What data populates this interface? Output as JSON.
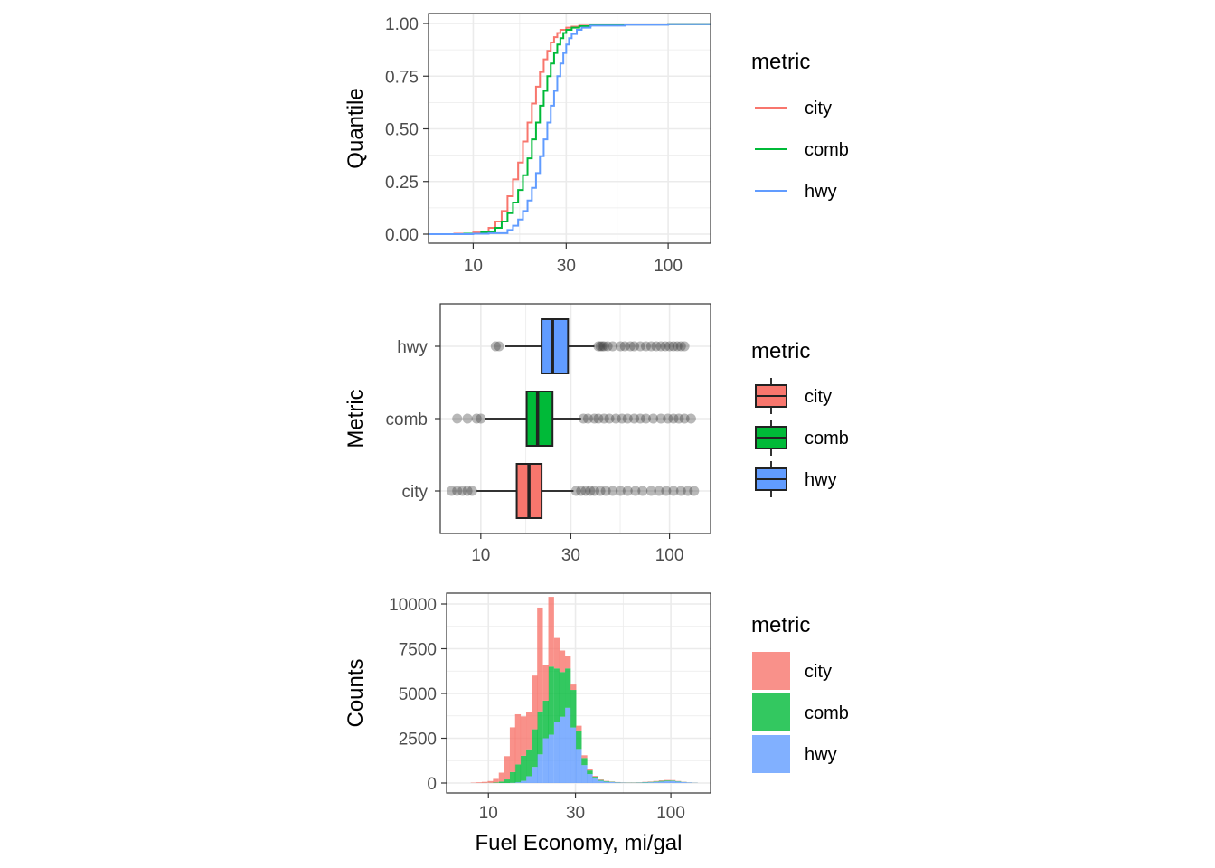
{
  "chart_data": [
    {
      "type": "line",
      "subtype": "ecdf-step",
      "ylabel": "Quantile",
      "xscale": "log10",
      "xlim": [
        5.9,
        165
      ],
      "ylim": [
        0,
        1
      ],
      "xticks": [
        10,
        30,
        100
      ],
      "yticks": [
        0.0,
        0.25,
        0.5,
        0.75,
        1.0
      ],
      "ytick_labels": [
        "0.00",
        "0.25",
        "0.50",
        "0.75",
        "1.00"
      ],
      "grid": true,
      "legend": {
        "title": "metric",
        "position": "right",
        "entries": [
          "city",
          "comb",
          "hwy"
        ]
      },
      "series": [
        {
          "name": "city",
          "color": "#F8766D",
          "x": [
            5.9,
            8,
            10,
            12,
            13,
            14,
            15,
            16,
            17,
            18,
            19,
            20,
            21,
            22,
            23,
            24,
            25,
            26,
            27,
            28,
            30,
            32,
            35,
            40,
            60,
            100,
            165
          ],
          "y": [
            0,
            0.002,
            0.008,
            0.03,
            0.06,
            0.11,
            0.18,
            0.26,
            0.34,
            0.44,
            0.53,
            0.62,
            0.7,
            0.77,
            0.83,
            0.87,
            0.91,
            0.935,
            0.955,
            0.97,
            0.98,
            0.985,
            0.99,
            0.993,
            0.995,
            0.997,
            1.0
          ]
        },
        {
          "name": "comb",
          "color": "#00BA38",
          "x": [
            5.9,
            9,
            11,
            13,
            14,
            15,
            16,
            17,
            18,
            19,
            20,
            21,
            22,
            23,
            24,
            25,
            26,
            27,
            28,
            29,
            30,
            32,
            35,
            40,
            60,
            100,
            165
          ],
          "y": [
            0,
            0.002,
            0.01,
            0.03,
            0.06,
            0.1,
            0.15,
            0.21,
            0.28,
            0.36,
            0.45,
            0.53,
            0.61,
            0.68,
            0.75,
            0.81,
            0.86,
            0.9,
            0.93,
            0.955,
            0.97,
            0.98,
            0.987,
            0.992,
            0.995,
            0.997,
            1.0
          ]
        },
        {
          "name": "hwy",
          "color": "#619CFF",
          "x": [
            5.9,
            10,
            12,
            15,
            16,
            17,
            18,
            19,
            20,
            21,
            22,
            23,
            24,
            25,
            26,
            27,
            28,
            29,
            30,
            31,
            32,
            34,
            36,
            40,
            60,
            100,
            165
          ],
          "y": [
            0,
            0.002,
            0.005,
            0.02,
            0.04,
            0.07,
            0.11,
            0.16,
            0.22,
            0.29,
            0.37,
            0.45,
            0.53,
            0.61,
            0.68,
            0.75,
            0.81,
            0.86,
            0.9,
            0.93,
            0.95,
            0.97,
            0.98,
            0.99,
            0.994,
            0.997,
            1.0
          ]
        }
      ]
    },
    {
      "type": "box",
      "ylabel": "Metric",
      "xscale": "log10",
      "xlim": [
        6.1,
        165
      ],
      "xticks": [
        10,
        30,
        100
      ],
      "categories": [
        "hwy",
        "comb",
        "city"
      ],
      "grid": true,
      "legend": {
        "title": "metric",
        "position": "right",
        "entries": [
          "city",
          "comb",
          "hwy"
        ]
      },
      "boxes": [
        {
          "name": "hwy",
          "color": "#619CFF",
          "whisker_low": 13.5,
          "q1": 21,
          "median": 24,
          "q3": 29,
          "whisker_high": 40,
          "outliers": [
            12,
            12.5,
            42,
            43,
            44,
            45,
            47,
            50,
            55,
            58,
            62,
            65,
            70,
            75,
            80,
            85,
            90,
            95,
            100,
            105,
            110,
            115,
            120
          ]
        },
        {
          "name": "comb",
          "color": "#00BA38",
          "whisker_low": 10.5,
          "q1": 17.5,
          "median": 20,
          "q3": 24,
          "whisker_high": 34,
          "outliers": [
            7.5,
            8.5,
            9.5,
            10,
            35,
            37,
            40,
            42,
            45,
            48,
            52,
            56,
            60,
            65,
            70,
            75,
            82,
            90,
            98,
            105,
            112,
            120,
            130
          ]
        },
        {
          "name": "city",
          "color": "#F8766D",
          "whisker_low": 9.5,
          "q1": 15.5,
          "median": 18,
          "q3": 21,
          "whisker_high": 31,
          "outliers": [
            7,
            7.5,
            8,
            8.5,
            9,
            32,
            34,
            36,
            38,
            40,
            43,
            46,
            50,
            55,
            60,
            66,
            72,
            80,
            88,
            96,
            105,
            115,
            125,
            135
          ]
        }
      ]
    },
    {
      "type": "bar",
      "subtype": "stacked-histogram",
      "xlabel": "Fuel Economy, mi/gal",
      "ylabel": "Counts",
      "xscale": "log10",
      "xlim": [
        5.9,
        165
      ],
      "ylim": [
        0,
        10000
      ],
      "xticks": [
        10,
        30,
        100
      ],
      "yticks": [
        0,
        2500,
        5000,
        7500,
        10000
      ],
      "grid": true,
      "legend": {
        "title": "metric",
        "position": "right",
        "entries": [
          "city",
          "comb",
          "hwy"
        ]
      },
      "bin_starts": [
        8,
        8.6,
        9.2,
        9.9,
        10.6,
        11.4,
        12.2,
        13.1,
        14,
        15,
        16.1,
        17.3,
        18.5,
        19.9,
        21.3,
        22.9,
        24.5,
        26.3,
        28.2,
        30.2,
        32.4,
        34.7,
        37.2,
        39.9,
        42.8,
        45.9,
        49.2,
        52.7,
        56.5,
        60.6,
        65,
        69.7,
        74.7,
        80.1,
        85.9,
        92.1,
        98.7,
        105.8,
        113.5,
        121.7,
        130.5
      ],
      "series": [
        {
          "name": "hwy",
          "color": "#619CFF",
          "values": [
            0,
            0,
            0,
            0,
            0,
            0,
            0,
            10,
            40,
            120,
            380,
            900,
            1600,
            2500,
            2700,
            3400,
            3700,
            4200,
            3100,
            1900,
            1000,
            500,
            250,
            120,
            70,
            50,
            30,
            20,
            15,
            15,
            20,
            30,
            40,
            60,
            80,
            100,
            110,
            80,
            50,
            30,
            15
          ]
        },
        {
          "name": "comb",
          "color": "#00BA38",
          "values": [
            0,
            0,
            5,
            10,
            30,
            80,
            200,
            600,
            1000,
            1400,
            1500,
            2100,
            2400,
            2100,
            3800,
            3000,
            2500,
            2200,
            2100,
            1000,
            400,
            200,
            100,
            50,
            30,
            20,
            15,
            10,
            10,
            10,
            15,
            20,
            25,
            30,
            40,
            40,
            30,
            20,
            10,
            5,
            5
          ]
        },
        {
          "name": "city",
          "color": "#F8766D",
          "values": [
            20,
            40,
            60,
            100,
            200,
            500,
            1300,
            2500,
            2800,
            2200,
            2100,
            3000,
            5800,
            2000,
            3900,
            1700,
            1200,
            700,
            300,
            300,
            150,
            80,
            50,
            30,
            20,
            15,
            10,
            10,
            10,
            10,
            10,
            15,
            20,
            25,
            30,
            30,
            25,
            15,
            10,
            5,
            5
          ]
        }
      ]
    }
  ]
}
